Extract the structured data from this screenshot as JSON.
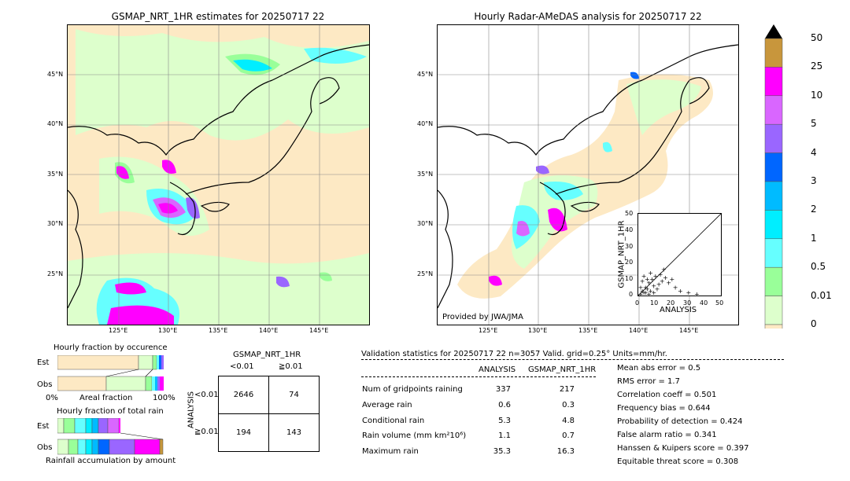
{
  "left_map": {
    "title": "GSMAP_NRT_1HR estimates for 20250717 22",
    "lat_labels": [
      "45°N",
      "40°N",
      "35°N",
      "30°N",
      "25°N"
    ],
    "lon_labels": [
      "125°E",
      "130°E",
      "135°E",
      "140°E",
      "145°E"
    ]
  },
  "right_map": {
    "title": "Hourly Radar-AMeDAS analysis for 20250717 22",
    "lat_labels": [
      "45°N",
      "40°N",
      "35°N",
      "30°N",
      "25°N"
    ],
    "lon_labels": [
      "125°E",
      "130°E",
      "135°E",
      "140°E",
      "145°E"
    ],
    "credit": "Provided by JWA/JMA"
  },
  "colorbar": {
    "labels": [
      "50",
      "25",
      "10",
      "5",
      "4",
      "3",
      "2",
      "1",
      "0.5",
      "0.01",
      "0"
    ],
    "colors": [
      "#c8963c",
      "#ff00ff",
      "#d966ff",
      "#9a66ff",
      "#0066ff",
      "#00bbff",
      "#00eeff",
      "#66ffff",
      "#99ff99",
      "#ddffcc",
      "#fde9c4"
    ]
  },
  "scatter": {
    "ylabel": "GSMAP_NRT_1HR",
    "xlabel": "ANALYSIS",
    "ticks": [
      "0",
      "10",
      "20",
      "30",
      "40",
      "50"
    ]
  },
  "fraction_occurrence": {
    "title": "Hourly fraction by occurence",
    "row_labels": [
      "Est",
      "Obs"
    ],
    "axis_left": "0%",
    "axis_mid": "Areal fraction",
    "axis_right": "100%"
  },
  "fraction_total": {
    "title": "Hourly fraction of total rain",
    "row_labels": [
      "Est",
      "Obs"
    ],
    "footer": "Rainfall accumulation by amount"
  },
  "contingency": {
    "title": "GSMAP_NRT_1HR",
    "col_labels": [
      "<0.01",
      "≧0.01"
    ],
    "row_axis": "ANALYSIS",
    "row_labels": [
      "<0.01",
      "≧0.01"
    ],
    "cells": [
      [
        "2646",
        "74"
      ],
      [
        "194",
        "143"
      ]
    ]
  },
  "validation": {
    "header": "Validation statistics for 20250717 22  n=3057 Valid. grid=0.25° Units=mm/hr.",
    "col_analysis": "ANALYSIS",
    "col_gsmap": "GSMAP_NRT_1HR",
    "rows": [
      {
        "label": "Num of gridpoints raining",
        "analysis": "337",
        "gsmap": "217"
      },
      {
        "label": "Average rain",
        "analysis": "0.6",
        "gsmap": "0.3"
      },
      {
        "label": "Conditional rain",
        "analysis": "5.3",
        "gsmap": "4.8"
      },
      {
        "label": "Rain volume (mm km²10⁶)",
        "analysis": "1.1",
        "gsmap": "0.7"
      },
      {
        "label": "Maximum rain",
        "analysis": "35.3",
        "gsmap": "16.3"
      }
    ],
    "scores": [
      "Mean abs error =    0.5",
      "RMS error =    1.7",
      "Correlation coeff =  0.501",
      "Frequency bias =  0.644",
      "Probability of detection =  0.424",
      "False alarm ratio =  0.341",
      "Hanssen & Kuipers score =  0.397",
      "Equitable threat score =  0.308"
    ]
  },
  "chart_data": [
    {
      "type": "heatmap",
      "title": "GSMAP_NRT_1HR estimates for 20250717 22",
      "xlabel": "",
      "ylabel": "",
      "x_ticks": [
        "125°E",
        "130°E",
        "135°E",
        "140°E",
        "145°E"
      ],
      "y_ticks": [
        "45°N",
        "40°N",
        "35°N",
        "30°N",
        "25°N"
      ],
      "color_levels": [
        "0",
        "0.01",
        "0.5",
        "1",
        "2",
        "3",
        "4",
        "5",
        "10",
        "25",
        "50"
      ]
    },
    {
      "type": "heatmap",
      "title": "Hourly Radar-AMeDAS analysis for 20250717 22",
      "xlabel": "",
      "ylabel": "",
      "x_ticks": [
        "125°E",
        "130°E",
        "135°E",
        "140°E",
        "145°E"
      ],
      "y_ticks": [
        "45°N",
        "40°N",
        "35°N",
        "30°N",
        "25°N"
      ],
      "color_levels": [
        "0",
        "0.01",
        "0.5",
        "1",
        "2",
        "3",
        "4",
        "5",
        "10",
        "25",
        "50"
      ]
    },
    {
      "type": "scatter",
      "xlabel": "ANALYSIS",
      "ylabel": "GSMAP_NRT_1HR",
      "xlim": [
        0,
        50
      ],
      "ylim": [
        0,
        50
      ],
      "points": [
        [
          1,
          1
        ],
        [
          2,
          3
        ],
        [
          3,
          2
        ],
        [
          4,
          5
        ],
        [
          5,
          4
        ],
        [
          6,
          8
        ],
        [
          7,
          3
        ],
        [
          8,
          10
        ],
        [
          9,
          6
        ],
        [
          10,
          12
        ],
        [
          12,
          7
        ],
        [
          14,
          9
        ],
        [
          15,
          16
        ],
        [
          18,
          8
        ],
        [
          20,
          10
        ],
        [
          22,
          5
        ],
        [
          25,
          3
        ],
        [
          30,
          2
        ],
        [
          35,
          1
        ],
        [
          2,
          9
        ],
        [
          3,
          12
        ],
        [
          1,
          5
        ],
        [
          4,
          2
        ],
        [
          6,
          1
        ],
        [
          11,
          4
        ],
        [
          13,
          13
        ],
        [
          16,
          11
        ],
        [
          5,
          10
        ],
        [
          7,
          14
        ],
        [
          9,
          2
        ]
      ]
    },
    {
      "type": "bar",
      "title": "Hourly fraction by occurence",
      "categories": [
        "Est",
        "Obs"
      ]
    },
    {
      "type": "bar",
      "title": "Hourly fraction of total rain",
      "categories": [
        "Est",
        "Obs"
      ]
    },
    {
      "type": "table",
      "title": "GSMAP_NRT_1HR",
      "columns": [
        "<0.01",
        "≧0.01"
      ],
      "rows": [
        "<0.01",
        "≧0.01"
      ],
      "values": [
        [
          2646,
          74
        ],
        [
          194,
          143
        ]
      ]
    }
  ]
}
